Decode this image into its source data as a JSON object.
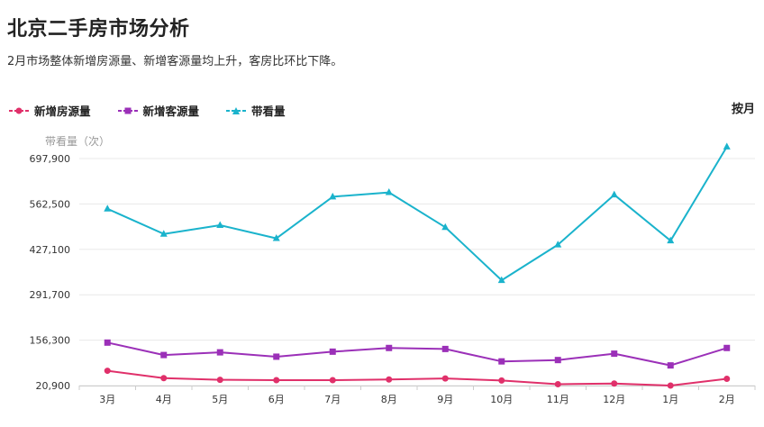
{
  "title": "北京二手房市场分析",
  "subtitle": "2月市场整体新增房源量、新增客源量均上升，客房比环比下降。",
  "period_label": "按月",
  "colors": {
    "new_listings": "#e0306a",
    "new_clients": "#9b30b8",
    "viewings": "#1ab3cc"
  },
  "chart_data": {
    "type": "line",
    "categories": [
      "3月",
      "4月",
      "5月",
      "6月",
      "7月",
      "8月",
      "9月",
      "10月",
      "11月",
      "12月",
      "1月",
      "2月"
    ],
    "ylabel": "带看量（次）",
    "yticks": [
      20900,
      156300,
      291700,
      427100,
      562500,
      697900
    ],
    "ytick_labels": [
      "20,900",
      "156,300",
      "291,700",
      "427,100",
      "562,500",
      "697,900"
    ],
    "ylim": [
      20900,
      697900
    ],
    "grid": true,
    "legend_position": "top-left",
    "series": [
      {
        "name": "新增房源量",
        "marker": "circle",
        "values": [
          65000,
          43000,
          38000,
          37000,
          37000,
          39000,
          42000,
          36000,
          25000,
          27000,
          21000,
          41000
        ]
      },
      {
        "name": "新增客源量",
        "marker": "square",
        "values": [
          149000,
          112000,
          120000,
          107000,
          122000,
          133000,
          130000,
          93000,
          97000,
          116000,
          81000,
          133000
        ]
      },
      {
        "name": "带看量",
        "marker": "triangle",
        "values": [
          548000,
          473000,
          499000,
          460000,
          584000,
          597000,
          493000,
          335000,
          441000,
          590000,
          453000,
          733000
        ]
      }
    ]
  }
}
